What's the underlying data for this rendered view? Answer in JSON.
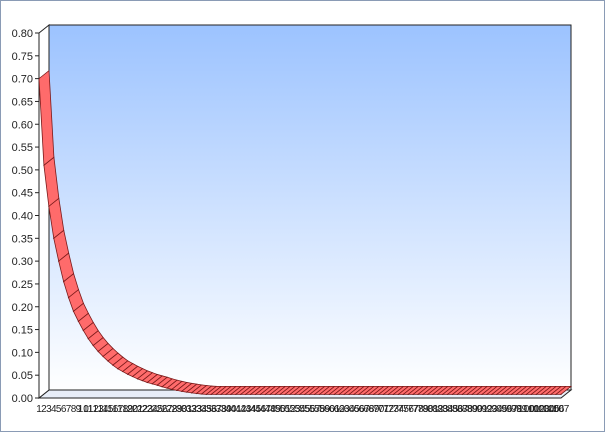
{
  "chart_data": {
    "type": "area",
    "style": "3d-ribbon",
    "title": "",
    "xlabel": "",
    "ylabel": "",
    "ylim": [
      0,
      0.8
    ],
    "y_ticks": [
      "0.00",
      "0.05",
      "0.10",
      "0.15",
      "0.20",
      "0.25",
      "0.30",
      "0.35",
      "0.40",
      "0.45",
      "0.50",
      "0.55",
      "0.60",
      "0.65",
      "0.70",
      "0.75",
      "0.80"
    ],
    "x_start": 1,
    "x_end": 107,
    "decay_per_step": 0.878,
    "series": [
      {
        "values": [
          0.7,
          0.51,
          0.42,
          0.35,
          0.3,
          0.255,
          0.22,
          0.19,
          0.168,
          0.148,
          0.13,
          0.115,
          0.102,
          0.091,
          0.081,
          0.072,
          0.064,
          0.058,
          0.052,
          0.047,
          0.042,
          0.038,
          0.034,
          0.031,
          0.028
        ]
      }
    ],
    "grid": false,
    "legend": "none",
    "colors": {
      "ribbon_fill": "#ff6b6b",
      "ribbon_stroke": "#7a1a1a",
      "plot_bg_top": "#9cc3ff",
      "plot_bg_bottom": "#ffffff",
      "frame": "#8a9bb5"
    }
  }
}
